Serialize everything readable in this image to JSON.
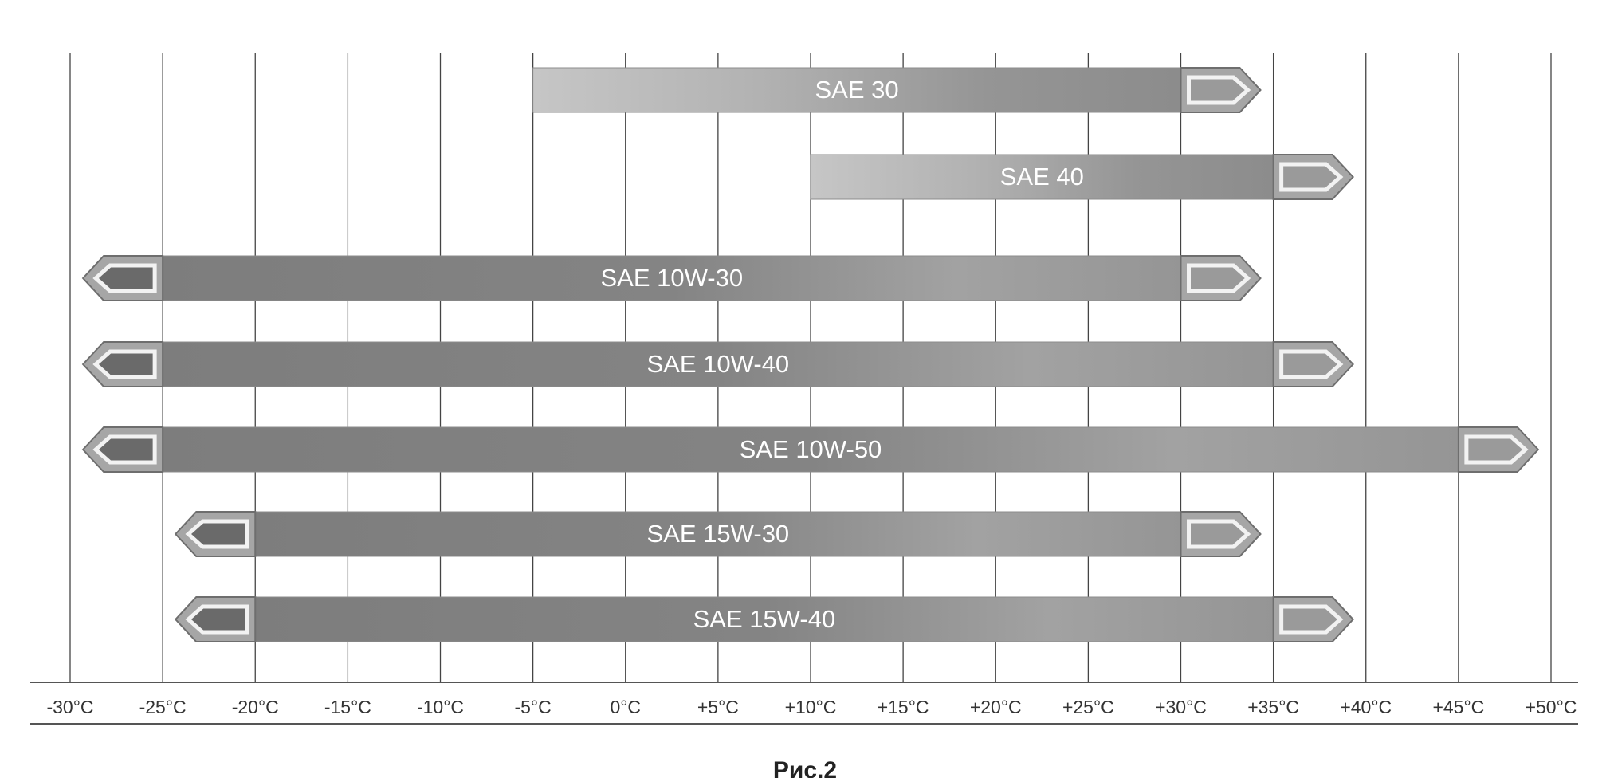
{
  "chart_data": {
    "type": "range-bar",
    "categories": [
      "SAE 30",
      "SAE 40",
      "SAE 10W-30",
      "SAE 10W-40",
      "SAE 10W-50",
      "SAE 15W-30",
      "SAE 15W-40"
    ],
    "low": [
      -5,
      10,
      -25,
      -25,
      -25,
      -20,
      -20
    ],
    "high": [
      30,
      35,
      30,
      35,
      45,
      30,
      35
    ],
    "open_low": [
      false,
      false,
      true,
      true,
      true,
      true,
      true
    ],
    "open_high": [
      true,
      true,
      true,
      true,
      true,
      true,
      true
    ],
    "color": "#8c8c8c",
    "xlim": [
      -30,
      50
    ],
    "xticks": [
      {
        "value": -30,
        "label": "-30°C"
      },
      {
        "value": -25,
        "label": "-25°C"
      },
      {
        "value": -20,
        "label": "-20°C"
      },
      {
        "value": -15,
        "label": "-15°C"
      },
      {
        "value": -10,
        "label": "-10°C"
      },
      {
        "value": -5,
        "label": "-5°C"
      },
      {
        "value": 0,
        "label": "0°C"
      },
      {
        "value": 5,
        "label": "+5°C"
      },
      {
        "value": 10,
        "label": "+10°C"
      },
      {
        "value": 15,
        "label": "+15°C"
      },
      {
        "value": 20,
        "label": "+20°C"
      },
      {
        "value": 25,
        "label": "+25°C"
      },
      {
        "value": 30,
        "label": "+30°C"
      },
      {
        "value": 35,
        "label": "+35°C"
      },
      {
        "value": 40,
        "label": "+40°C"
      },
      {
        "value": 45,
        "label": "+45°C"
      },
      {
        "value": 50,
        "label": "+50°C"
      }
    ],
    "grid": true,
    "caption": "Рис.2"
  }
}
